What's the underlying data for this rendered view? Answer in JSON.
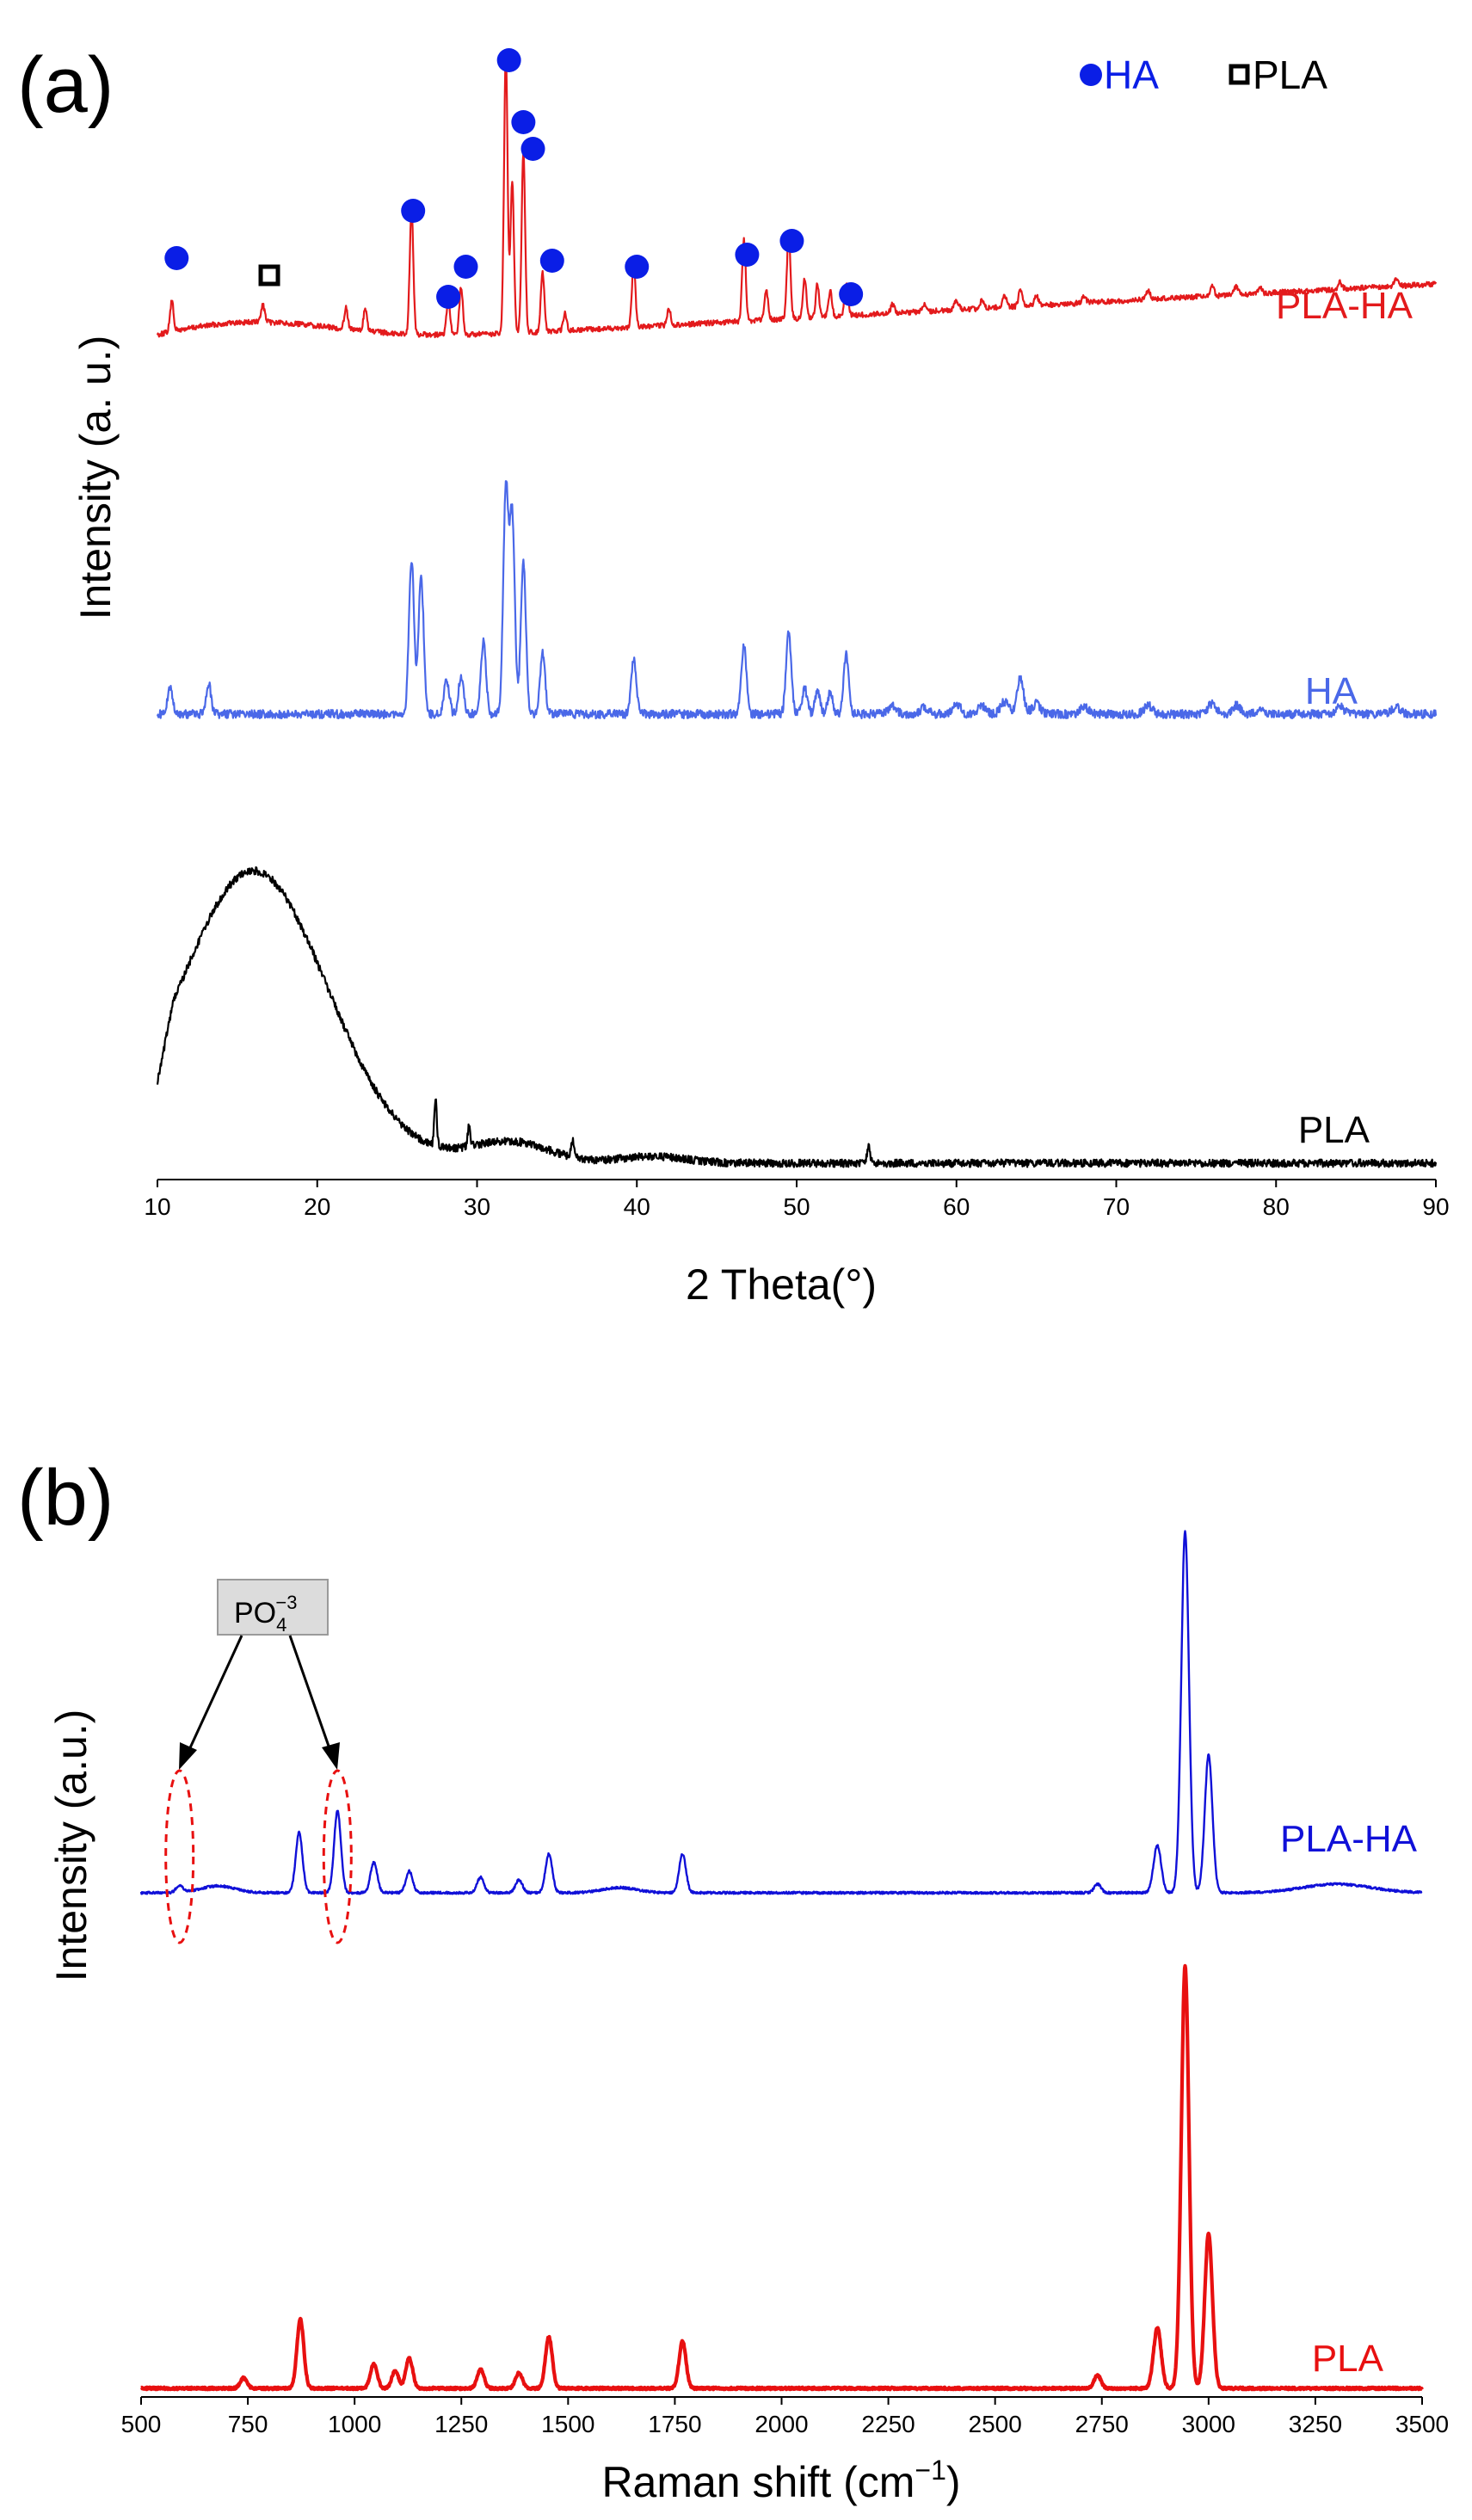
{
  "chart_data": [
    {
      "type": "line",
      "panel_label": "(a)",
      "xlabel": "2 Theta(°)",
      "ylabel": "Intensity (a. u.)",
      "xlim": [
        10,
        90
      ],
      "xticks": [
        10,
        20,
        30,
        40,
        50,
        60,
        70,
        80,
        90
      ],
      "legend": {
        "placement": "top-right",
        "entries": [
          {
            "name": "HA",
            "marker": "filled-circle",
            "color": "#0a1ee6"
          },
          {
            "name": "PLA",
            "marker": "open-square",
            "color": "#000000"
          }
        ]
      },
      "series": [
        {
          "name": "PLA-HA",
          "color": "#e31a1c",
          "peaks_2theta": [
            10.9,
            16.6,
            21.8,
            23.0,
            25.9,
            28.2,
            29.0,
            31.8,
            32.2,
            32.9,
            34.1,
            35.5,
            39.8,
            42.0,
            46.7,
            48.1,
            49.5,
            50.5,
            51.3,
            52.1,
            53.1
          ]
        },
        {
          "name": "HA",
          "color": "#4a68e8",
          "peaks_2theta": [
            10.8,
            13.2,
            25.9,
            26.5,
            28.1,
            29.0,
            30.4,
            31.8,
            32.2,
            32.9,
            34.1,
            39.8,
            46.7,
            49.5,
            53.1,
            64.0
          ]
        },
        {
          "name": "PLA",
          "color": "#000000",
          "peaks_2theta": [
            16.0,
            27.4,
            29.5,
            32.5,
            36.0,
            54.5
          ]
        }
      ],
      "markers": [
        {
          "type": "HA",
          "x": 11.2
        },
        {
          "type": "PLA",
          "x": 17.0
        },
        {
          "type": "HA",
          "x": 26.0
        },
        {
          "type": "HA",
          "x": 28.2
        },
        {
          "type": "HA",
          "x": 29.3
        },
        {
          "type": "HA",
          "x": 32.0
        },
        {
          "type": "HA",
          "x": 32.9
        },
        {
          "type": "HA",
          "x": 33.5
        },
        {
          "type": "HA",
          "x": 34.7
        },
        {
          "type": "HA",
          "x": 40.0
        },
        {
          "type": "HA",
          "x": 46.9
        },
        {
          "type": "HA",
          "x": 49.7
        },
        {
          "type": "HA",
          "x": 53.4
        }
      ]
    },
    {
      "type": "line",
      "panel_label": "(b)",
      "xlabel_main": "Raman shift (cm",
      "xlabel_sup": "−1",
      "xlabel_end": ")",
      "ylabel": "Intensity (a.u.)",
      "xlim": [
        500,
        3500
      ],
      "xticks": [
        500,
        750,
        1000,
        1250,
        1500,
        1750,
        2000,
        2250,
        2500,
        2750,
        3000,
        3250,
        3500
      ],
      "annotation": {
        "base": "PO",
        "sub": "4",
        "sup": "−3",
        "targets_cm1": [
          590,
          960
        ]
      },
      "series": [
        {
          "name": "PLA-HA",
          "color": "#1010d8",
          "peaks_cm1": [
            590,
            870,
            960,
            1045,
            1128,
            1295,
            1385,
            1455,
            1768,
            2880,
            2945,
            3000
          ]
        },
        {
          "name": "PLA",
          "color": "#e81010",
          "peaks_cm1": [
            740,
            873,
            1045,
            1095,
            1128,
            1295,
            1385,
            1455,
            1768,
            2740,
            2880,
            2945,
            3000
          ]
        }
      ]
    }
  ]
}
